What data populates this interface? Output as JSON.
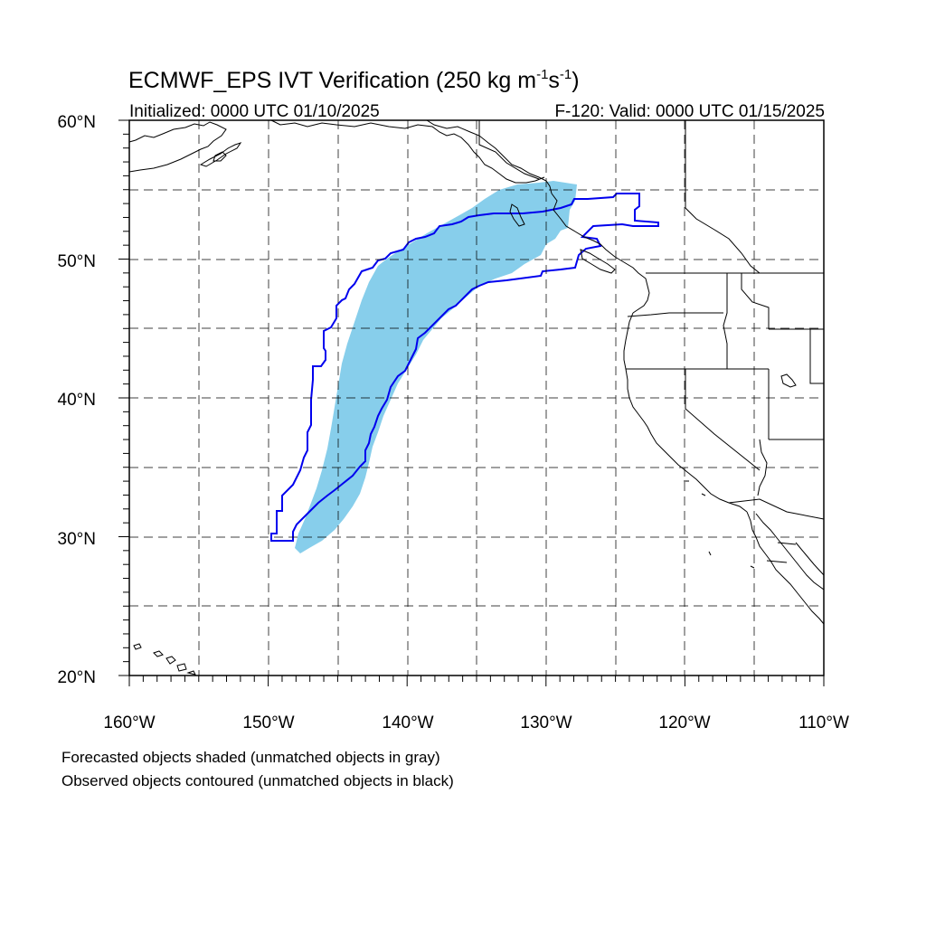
{
  "title": {
    "main": "ECMWF_EPS IVT Verification (250 kg m",
    "sup1": "-1",
    "mid": "s",
    "sup2": "-1",
    "end": ")"
  },
  "subtitle_left": "Initialized: 0000 UTC 01/10/2025",
  "subtitle_right": "F-120: Valid: 0000 UTC 01/15/2025",
  "lat_labels": [
    "60°N",
    "50°N",
    "40°N",
    "30°N",
    "20°N"
  ],
  "lon_labels": [
    "160°W",
    "150°W",
    "140°W",
    "130°W",
    "120°W",
    "110°W"
  ],
  "notes": [
    "Forecasted objects shaded (unmatched objects in gray)",
    "Observed objects contoured (unmatched objects in black)"
  ],
  "colors": {
    "forecast_fill": "#87ceeb",
    "observed_contour": "#0000ee",
    "map_lines": "#000000"
  },
  "map_extent": {
    "lon": [
      -160,
      -110
    ],
    "lat": [
      20,
      60
    ]
  },
  "objects": [
    {
      "type": "forecast",
      "status": "matched",
      "color": "#87ceeb"
    },
    {
      "type": "observed",
      "status": "matched",
      "color": "#0000ee"
    }
  ]
}
